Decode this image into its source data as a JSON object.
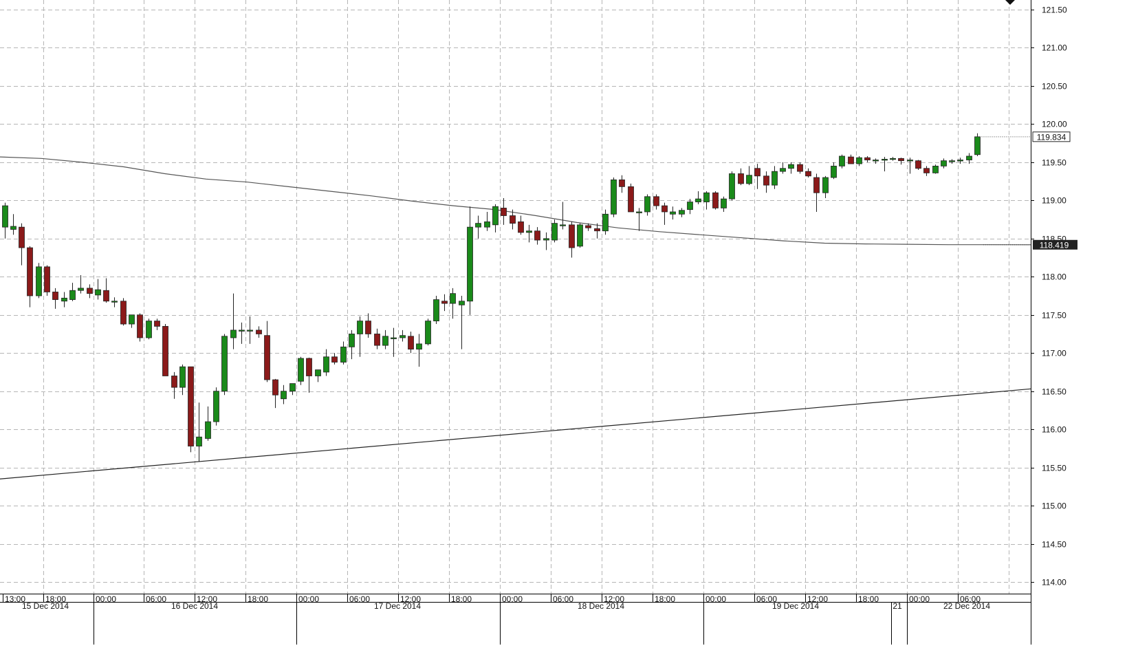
{
  "chart_data": {
    "type": "candlestick",
    "colors": {
      "up": "#1a8a1a",
      "down": "#8b1a1a",
      "grid": "#b5b5b5",
      "axis": "#000000",
      "ma_line": "#555555",
      "trend_line": "#222222",
      "price_tag_bg": "#222222",
      "price_tag_text": "#ffffff"
    },
    "y_axis": {
      "ylim": [
        113.9,
        121.6
      ],
      "ticks": [
        "114.00",
        "114.50",
        "115.00",
        "115.50",
        "116.00",
        "116.50",
        "117.00",
        "117.50",
        "118.00",
        "118.50",
        "119.00",
        "119.50",
        "120.00",
        "120.50",
        "121.00",
        "121.50"
      ]
    },
    "x_axis": {
      "time_labels": [
        "13:00",
        "18:00",
        "00:00",
        "06:00",
        "12:00",
        "18:00",
        "00:00",
        "06:00",
        "12:00",
        "18:00",
        "00:00",
        "06:00",
        "12:00",
        "18:00",
        "00:00",
        "06:00",
        "12:00",
        "18:00",
        "00:00",
        "06:00"
      ],
      "date_labels": [
        "15 Dec 2014",
        "16 Dec 2014",
        "17 Dec 2014",
        "18 Dec 2014",
        "19 Dec 2014",
        "21",
        "22 Dec 2014"
      ]
    },
    "current_price_label": "119.834",
    "ma_price_label": "118.419",
    "candles": [
      {
        "o": 118.65,
        "h": 118.97,
        "l": 118.5,
        "c": 118.93
      },
      {
        "o": 118.62,
        "h": 118.82,
        "l": 118.55,
        "c": 118.66
      },
      {
        "o": 118.65,
        "h": 118.7,
        "l": 118.15,
        "c": 118.38
      },
      {
        "o": 118.38,
        "h": 118.4,
        "l": 117.6,
        "c": 117.75
      },
      {
        "o": 117.75,
        "h": 118.18,
        "l": 117.72,
        "c": 118.13
      },
      {
        "o": 118.13,
        "h": 118.15,
        "l": 117.75,
        "c": 117.8
      },
      {
        "o": 117.8,
        "h": 117.85,
        "l": 117.58,
        "c": 117.7
      },
      {
        "o": 117.68,
        "h": 117.8,
        "l": 117.6,
        "c": 117.72
      },
      {
        "o": 117.7,
        "h": 117.92,
        "l": 117.68,
        "c": 117.82
      },
      {
        "o": 117.82,
        "h": 118.02,
        "l": 117.78,
        "c": 117.85
      },
      {
        "o": 117.85,
        "h": 117.9,
        "l": 117.72,
        "c": 117.78
      },
      {
        "o": 117.76,
        "h": 117.97,
        "l": 117.7,
        "c": 117.83
      },
      {
        "o": 117.82,
        "h": 117.98,
        "l": 117.66,
        "c": 117.68
      },
      {
        "o": 117.68,
        "h": 117.73,
        "l": 117.6,
        "c": 117.68
      },
      {
        "o": 117.68,
        "h": 117.72,
        "l": 117.36,
        "c": 117.38
      },
      {
        "o": 117.38,
        "h": 117.5,
        "l": 117.33,
        "c": 117.5
      },
      {
        "o": 117.5,
        "h": 117.52,
        "l": 117.15,
        "c": 117.2
      },
      {
        "o": 117.2,
        "h": 117.45,
        "l": 117.18,
        "c": 117.42
      },
      {
        "o": 117.42,
        "h": 117.45,
        "l": 117.3,
        "c": 117.35
      },
      {
        "o": 117.35,
        "h": 117.38,
        "l": 116.7,
        "c": 116.7
      },
      {
        "o": 116.7,
        "h": 116.75,
        "l": 116.4,
        "c": 116.55
      },
      {
        "o": 116.55,
        "h": 116.85,
        "l": 116.45,
        "c": 116.82
      },
      {
        "o": 116.82,
        "h": 116.82,
        "l": 115.7,
        "c": 115.78
      },
      {
        "o": 115.78,
        "h": 116.35,
        "l": 115.58,
        "c": 115.9
      },
      {
        "o": 115.88,
        "h": 116.3,
        "l": 115.85,
        "c": 116.1
      },
      {
        "o": 116.1,
        "h": 116.55,
        "l": 116.05,
        "c": 116.5
      },
      {
        "o": 116.5,
        "h": 117.25,
        "l": 116.45,
        "c": 117.22
      },
      {
        "o": 117.2,
        "h": 117.78,
        "l": 117.05,
        "c": 117.3
      },
      {
        "o": 117.3,
        "h": 117.4,
        "l": 117.12,
        "c": 117.3
      },
      {
        "o": 117.3,
        "h": 117.48,
        "l": 117.12,
        "c": 117.3
      },
      {
        "o": 117.3,
        "h": 117.35,
        "l": 117.2,
        "c": 117.25
      },
      {
        "o": 117.23,
        "h": 117.42,
        "l": 116.62,
        "c": 116.65
      },
      {
        "o": 116.65,
        "h": 116.66,
        "l": 116.28,
        "c": 116.45
      },
      {
        "o": 116.4,
        "h": 116.58,
        "l": 116.33,
        "c": 116.5
      },
      {
        "o": 116.5,
        "h": 116.6,
        "l": 116.45,
        "c": 116.6
      },
      {
        "o": 116.63,
        "h": 116.95,
        "l": 116.58,
        "c": 116.93
      },
      {
        "o": 116.93,
        "h": 116.94,
        "l": 116.48,
        "c": 116.7
      },
      {
        "o": 116.7,
        "h": 116.78,
        "l": 116.62,
        "c": 116.78
      },
      {
        "o": 116.75,
        "h": 117.05,
        "l": 116.7,
        "c": 116.95
      },
      {
        "o": 116.95,
        "h": 117.0,
        "l": 116.85,
        "c": 116.88
      },
      {
        "o": 116.88,
        "h": 117.15,
        "l": 116.85,
        "c": 117.08
      },
      {
        "o": 117.08,
        "h": 117.3,
        "l": 116.92,
        "c": 117.25
      },
      {
        "o": 117.25,
        "h": 117.48,
        "l": 116.95,
        "c": 117.42
      },
      {
        "o": 117.42,
        "h": 117.52,
        "l": 117.2,
        "c": 117.25
      },
      {
        "o": 117.25,
        "h": 117.32,
        "l": 117.05,
        "c": 117.1
      },
      {
        "o": 117.1,
        "h": 117.3,
        "l": 117.05,
        "c": 117.22
      },
      {
        "o": 117.2,
        "h": 117.33,
        "l": 116.95,
        "c": 117.2
      },
      {
        "o": 117.2,
        "h": 117.3,
        "l": 117.15,
        "c": 117.23
      },
      {
        "o": 117.22,
        "h": 117.28,
        "l": 117.0,
        "c": 117.05
      },
      {
        "o": 117.05,
        "h": 117.25,
        "l": 116.82,
        "c": 117.12
      },
      {
        "o": 117.12,
        "h": 117.45,
        "l": 117.1,
        "c": 117.42
      },
      {
        "o": 117.42,
        "h": 117.75,
        "l": 117.38,
        "c": 117.7
      },
      {
        "o": 117.68,
        "h": 117.77,
        "l": 117.55,
        "c": 117.65
      },
      {
        "o": 117.65,
        "h": 117.85,
        "l": 117.45,
        "c": 117.78
      },
      {
        "o": 117.63,
        "h": 117.75,
        "l": 117.05,
        "c": 117.68
      },
      {
        "o": 117.68,
        "h": 118.92,
        "l": 117.5,
        "c": 118.65
      },
      {
        "o": 118.65,
        "h": 118.8,
        "l": 118.5,
        "c": 118.7
      },
      {
        "o": 118.65,
        "h": 118.85,
        "l": 118.6,
        "c": 118.72
      },
      {
        "o": 118.68,
        "h": 118.95,
        "l": 118.58,
        "c": 118.92
      },
      {
        "o": 118.9,
        "h": 119.03,
        "l": 118.68,
        "c": 118.8
      },
      {
        "o": 118.8,
        "h": 118.88,
        "l": 118.62,
        "c": 118.7
      },
      {
        "o": 118.72,
        "h": 118.8,
        "l": 118.55,
        "c": 118.58
      },
      {
        "o": 118.58,
        "h": 118.68,
        "l": 118.45,
        "c": 118.6
      },
      {
        "o": 118.6,
        "h": 118.65,
        "l": 118.42,
        "c": 118.48
      },
      {
        "o": 118.48,
        "h": 118.58,
        "l": 118.35,
        "c": 118.5
      },
      {
        "o": 118.48,
        "h": 118.75,
        "l": 118.45,
        "c": 118.7
      },
      {
        "o": 118.68,
        "h": 118.98,
        "l": 118.62,
        "c": 118.68
      },
      {
        "o": 118.68,
        "h": 118.72,
        "l": 118.25,
        "c": 118.38
      },
      {
        "o": 118.4,
        "h": 118.7,
        "l": 118.38,
        "c": 118.68
      },
      {
        "o": 118.67,
        "h": 118.7,
        "l": 118.6,
        "c": 118.64
      },
      {
        "o": 118.63,
        "h": 118.7,
        "l": 118.5,
        "c": 118.6
      },
      {
        "o": 118.6,
        "h": 118.88,
        "l": 118.55,
        "c": 118.82
      },
      {
        "o": 118.82,
        "h": 119.3,
        "l": 118.78,
        "c": 119.27
      },
      {
        "o": 119.27,
        "h": 119.33,
        "l": 119.1,
        "c": 119.18
      },
      {
        "o": 119.18,
        "h": 119.22,
        "l": 118.85,
        "c": 118.85
      },
      {
        "o": 118.85,
        "h": 118.9,
        "l": 118.6,
        "c": 118.85
      },
      {
        "o": 118.85,
        "h": 119.08,
        "l": 118.8,
        "c": 119.05
      },
      {
        "o": 119.05,
        "h": 119.08,
        "l": 118.88,
        "c": 118.93
      },
      {
        "o": 118.93,
        "h": 118.97,
        "l": 118.68,
        "c": 118.85
      },
      {
        "o": 118.82,
        "h": 118.92,
        "l": 118.75,
        "c": 118.85
      },
      {
        "o": 118.82,
        "h": 118.9,
        "l": 118.78,
        "c": 118.87
      },
      {
        "o": 118.88,
        "h": 119.02,
        "l": 118.82,
        "c": 118.98
      },
      {
        "o": 118.98,
        "h": 119.12,
        "l": 118.95,
        "c": 119.02
      },
      {
        "o": 118.98,
        "h": 119.12,
        "l": 118.88,
        "c": 119.1
      },
      {
        "o": 119.1,
        "h": 119.12,
        "l": 118.88,
        "c": 118.9
      },
      {
        "o": 118.9,
        "h": 119.05,
        "l": 118.85,
        "c": 119.02
      },
      {
        "o": 119.02,
        "h": 119.38,
        "l": 119.0,
        "c": 119.35
      },
      {
        "o": 119.35,
        "h": 119.42,
        "l": 119.2,
        "c": 119.22
      },
      {
        "o": 119.22,
        "h": 119.45,
        "l": 119.2,
        "c": 119.33
      },
      {
        "o": 119.42,
        "h": 119.48,
        "l": 119.15,
        "c": 119.32
      },
      {
        "o": 119.32,
        "h": 119.38,
        "l": 119.1,
        "c": 119.2
      },
      {
        "o": 119.2,
        "h": 119.45,
        "l": 119.15,
        "c": 119.38
      },
      {
        "o": 119.38,
        "h": 119.5,
        "l": 119.35,
        "c": 119.42
      },
      {
        "o": 119.42,
        "h": 119.5,
        "l": 119.35,
        "c": 119.47
      },
      {
        "o": 119.47,
        "h": 119.5,
        "l": 119.35,
        "c": 119.38
      },
      {
        "o": 119.38,
        "h": 119.42,
        "l": 119.3,
        "c": 119.32
      },
      {
        "o": 119.3,
        "h": 119.35,
        "l": 118.85,
        "c": 119.1
      },
      {
        "o": 119.1,
        "h": 119.32,
        "l": 119.03,
        "c": 119.3
      },
      {
        "o": 119.3,
        "h": 119.5,
        "l": 119.28,
        "c": 119.45
      },
      {
        "o": 119.45,
        "h": 119.6,
        "l": 119.42,
        "c": 119.58
      },
      {
        "o": 119.57,
        "h": 119.6,
        "l": 119.48,
        "c": 119.48
      },
      {
        "o": 119.48,
        "h": 119.58,
        "l": 119.45,
        "c": 119.56
      },
      {
        "o": 119.56,
        "h": 119.58,
        "l": 119.5,
        "c": 119.53
      },
      {
        "o": 119.53,
        "h": 119.55,
        "l": 119.48,
        "c": 119.53
      },
      {
        "o": 119.53,
        "h": 119.57,
        "l": 119.38,
        "c": 119.54
      },
      {
        "o": 119.54,
        "h": 119.57,
        "l": 119.52,
        "c": 119.55
      },
      {
        "o": 119.55,
        "h": 119.56,
        "l": 119.47,
        "c": 119.52
      },
      {
        "o": 119.52,
        "h": 119.56,
        "l": 119.35,
        "c": 119.53
      },
      {
        "o": 119.52,
        "h": 119.53,
        "l": 119.4,
        "c": 119.42
      },
      {
        "o": 119.42,
        "h": 119.45,
        "l": 119.32,
        "c": 119.36
      },
      {
        "o": 119.36,
        "h": 119.47,
        "l": 119.35,
        "c": 119.45
      },
      {
        "o": 119.45,
        "h": 119.55,
        "l": 119.42,
        "c": 119.52
      },
      {
        "o": 119.52,
        "h": 119.54,
        "l": 119.48,
        "c": 119.52
      },
      {
        "o": 119.52,
        "h": 119.56,
        "l": 119.48,
        "c": 119.53
      },
      {
        "o": 119.53,
        "h": 119.62,
        "l": 119.48,
        "c": 119.58
      },
      {
        "o": 119.6,
        "h": 119.88,
        "l": 119.58,
        "c": 119.834
      }
    ],
    "moving_average": [
      119.57,
      119.55,
      119.5,
      119.44,
      119.35,
      119.28,
      119.24,
      119.18,
      119.12,
      119.06,
      118.99,
      118.93,
      118.88,
      118.8,
      118.71,
      118.64,
      118.59,
      118.55,
      118.51,
      118.47,
      118.44,
      118.43,
      118.425,
      118.42,
      118.42,
      118.419
    ],
    "trend_line": {
      "start": 115.35,
      "end": 116.53
    }
  }
}
